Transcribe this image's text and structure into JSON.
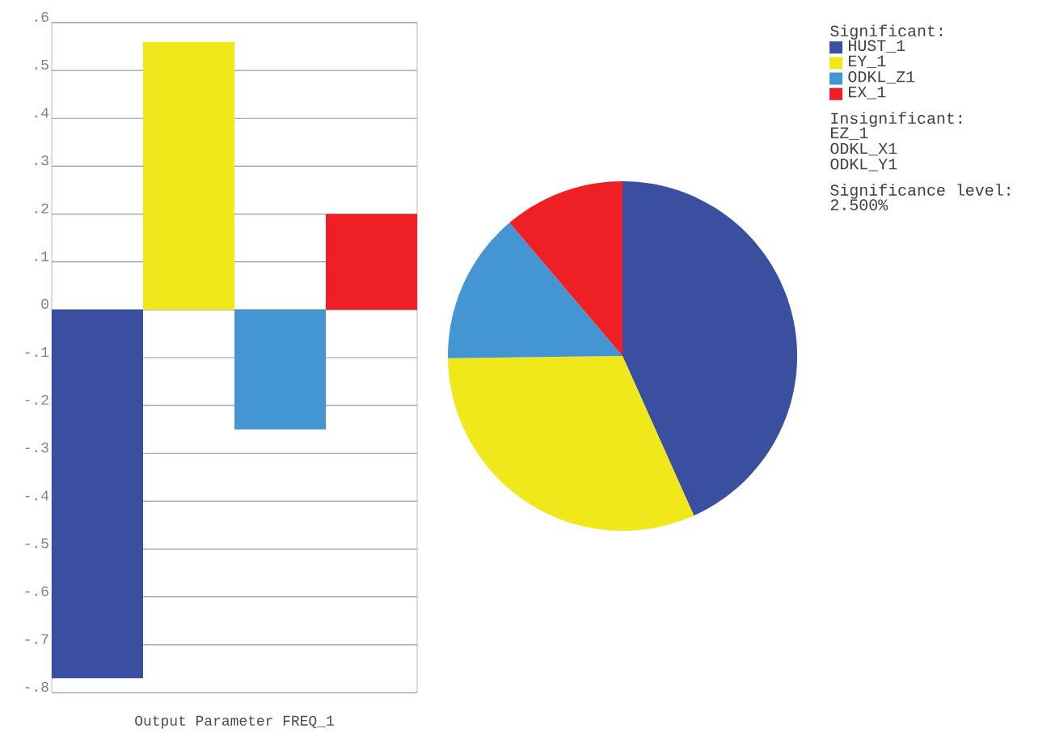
{
  "chart_data": [
    {
      "type": "bar",
      "xlabel": "Output Parameter FREQ_1",
      "categories": [
        null,
        null,
        null,
        null
      ],
      "values": [
        -0.77,
        0.56,
        -0.25,
        0.2
      ],
      "colors": [
        "#3a4fa0",
        "#f0e81a",
        "#4396d2",
        "#ee2026"
      ],
      "ylim": [
        -0.8,
        0.6
      ],
      "yticks": [
        {
          "value": -0.8,
          "label": "-.8"
        },
        {
          "value": -0.7,
          "label": "-.7"
        },
        {
          "value": -0.6,
          "label": "-.6"
        },
        {
          "value": -0.5,
          "label": "-.5"
        },
        {
          "value": -0.4,
          "label": "-.4"
        },
        {
          "value": -0.3,
          "label": "-.3"
        },
        {
          "value": -0.2,
          "label": "-.2"
        },
        {
          "value": -0.1,
          "label": "-.1"
        },
        0,
        {
          "value": 0.1,
          "label": ".1"
        },
        {
          "value": 0.2,
          "label": ".2"
        },
        {
          "value": 0.3,
          "label": ".3"
        },
        {
          "value": 0.4,
          "label": ".4"
        },
        {
          "value": 0.5,
          "label": ".5"
        },
        {
          "value": 0.6,
          "label": ".6"
        }
      ],
      "grid": "y"
    },
    {
      "type": "pie",
      "legend_title": "Significant:",
      "categories": [
        "HUST_1",
        "EY_1",
        "ODKL_Z1",
        "EX_1"
      ],
      "values": [
        43.3,
        31.5,
        14.0,
        11.2
      ],
      "colors": [
        "#3a4fa0",
        "#f0e81a",
        "#4396d2",
        "#ee2026"
      ],
      "legend": "right",
      "annotations": [
        "Insignificant:",
        "EZ_1",
        "ODKL_X1",
        "ODKL_Y1",
        "Significance level:",
        "2.500%"
      ]
    }
  ]
}
